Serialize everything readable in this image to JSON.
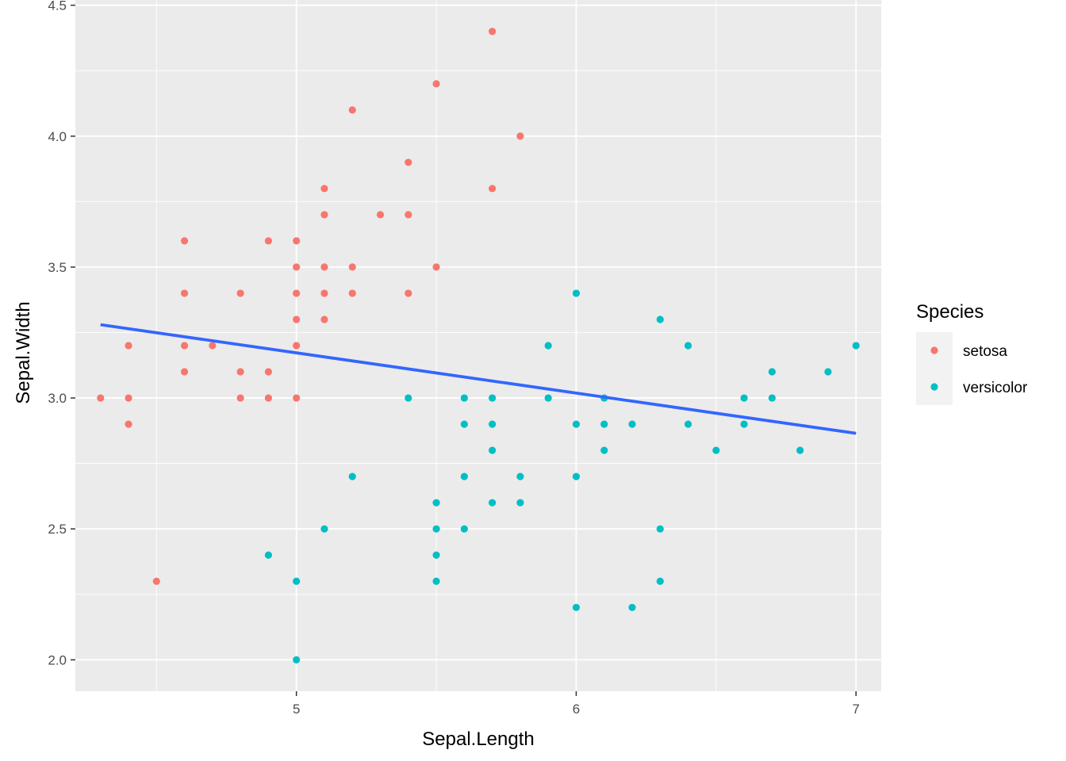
{
  "chart_data": {
    "type": "scatter",
    "xlabel": "Sepal.Length",
    "ylabel": "Sepal.Width",
    "xlim": [
      4.21,
      7.09
    ],
    "ylim": [
      1.88,
      4.52
    ],
    "x_ticks": [
      5,
      6,
      7
    ],
    "x_tick_labels": [
      "5",
      "6",
      "7"
    ],
    "y_ticks": [
      2.0,
      2.5,
      3.0,
      3.5,
      4.0,
      4.5
    ],
    "y_tick_labels": [
      "2.0",
      "2.5",
      "3.0",
      "3.5",
      "4.0",
      "4.5"
    ],
    "grid": true,
    "legend": {
      "title": "Species",
      "position": "right"
    },
    "series": [
      {
        "name": "setosa",
        "color": "#F8766D",
        "points": [
          [
            4.3,
            3.0
          ],
          [
            4.4,
            3.2
          ],
          [
            4.4,
            3.0
          ],
          [
            4.4,
            2.9
          ],
          [
            4.5,
            2.3
          ],
          [
            4.6,
            3.6
          ],
          [
            4.6,
            3.4
          ],
          [
            4.6,
            3.2
          ],
          [
            4.6,
            3.1
          ],
          [
            4.7,
            3.2
          ],
          [
            4.8,
            3.4
          ],
          [
            4.8,
            3.1
          ],
          [
            4.8,
            3.0
          ],
          [
            4.9,
            3.6
          ],
          [
            4.9,
            3.1
          ],
          [
            4.9,
            3.0
          ],
          [
            5.0,
            3.6
          ],
          [
            5.0,
            3.5
          ],
          [
            5.0,
            3.4
          ],
          [
            5.0,
            3.3
          ],
          [
            5.0,
            3.2
          ],
          [
            5.0,
            3.0
          ],
          [
            5.1,
            3.8
          ],
          [
            5.1,
            3.7
          ],
          [
            5.1,
            3.5
          ],
          [
            5.1,
            3.4
          ],
          [
            5.1,
            3.3
          ],
          [
            5.2,
            4.1
          ],
          [
            5.2,
            3.5
          ],
          [
            5.2,
            3.4
          ],
          [
            5.3,
            3.7
          ],
          [
            5.4,
            3.9
          ],
          [
            5.4,
            3.7
          ],
          [
            5.4,
            3.4
          ],
          [
            5.5,
            4.2
          ],
          [
            5.5,
            3.5
          ],
          [
            5.7,
            4.4
          ],
          [
            5.7,
            3.8
          ],
          [
            5.8,
            4.0
          ]
        ]
      },
      {
        "name": "versicolor",
        "color": "#00BFC4",
        "points": [
          [
            4.9,
            2.4
          ],
          [
            5.0,
            2.3
          ],
          [
            5.0,
            2.0
          ],
          [
            5.1,
            2.5
          ],
          [
            5.2,
            2.7
          ],
          [
            5.4,
            3.0
          ],
          [
            5.5,
            2.6
          ],
          [
            5.5,
            2.5
          ],
          [
            5.5,
            2.4
          ],
          [
            5.5,
            2.3
          ],
          [
            5.6,
            3.0
          ],
          [
            5.6,
            2.9
          ],
          [
            5.6,
            2.7
          ],
          [
            5.6,
            2.5
          ],
          [
            5.7,
            3.0
          ],
          [
            5.7,
            2.9
          ],
          [
            5.7,
            2.8
          ],
          [
            5.7,
            2.6
          ],
          [
            5.8,
            2.7
          ],
          [
            5.8,
            2.6
          ],
          [
            5.9,
            3.2
          ],
          [
            5.9,
            3.0
          ],
          [
            6.0,
            3.4
          ],
          [
            6.0,
            2.9
          ],
          [
            6.0,
            2.7
          ],
          [
            6.0,
            2.2
          ],
          [
            6.1,
            3.0
          ],
          [
            6.1,
            2.9
          ],
          [
            6.1,
            2.8
          ],
          [
            6.2,
            2.9
          ],
          [
            6.2,
            2.2
          ],
          [
            6.3,
            3.3
          ],
          [
            6.3,
            2.5
          ],
          [
            6.3,
            2.3
          ],
          [
            6.4,
            3.2
          ],
          [
            6.4,
            2.9
          ],
          [
            6.5,
            2.8
          ],
          [
            6.6,
            3.0
          ],
          [
            6.6,
            2.9
          ],
          [
            6.7,
            3.1
          ],
          [
            6.7,
            3.0
          ],
          [
            6.8,
            2.8
          ],
          [
            6.9,
            3.1
          ],
          [
            7.0,
            3.2
          ]
        ]
      }
    ],
    "trend_line": {
      "color": "#3366FF",
      "points": [
        [
          4.3,
          3.28
        ],
        [
          7.0,
          2.865
        ]
      ]
    }
  }
}
